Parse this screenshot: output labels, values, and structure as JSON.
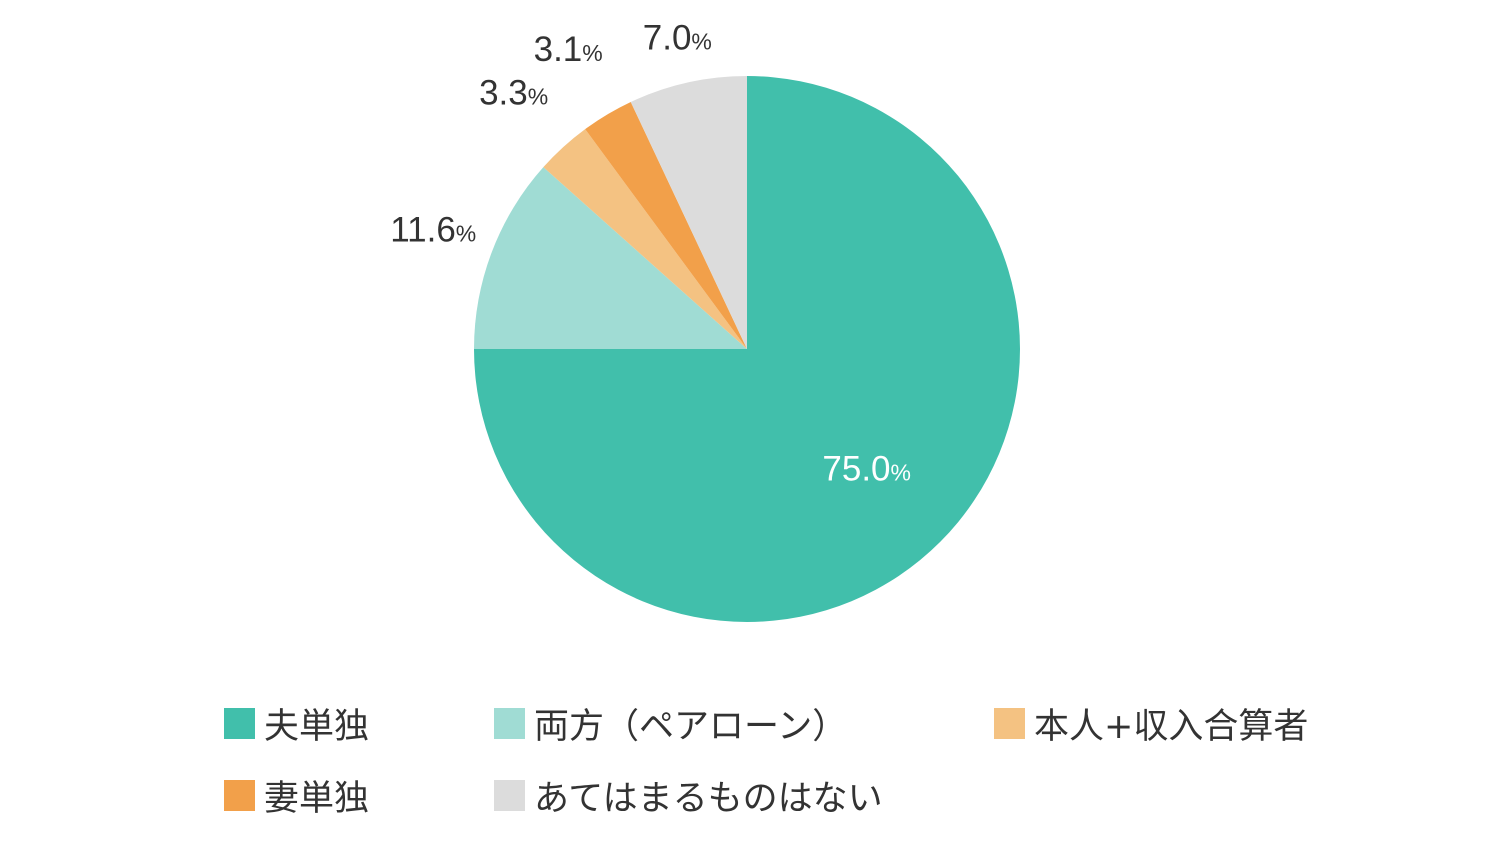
{
  "chart_data": {
    "type": "pie",
    "start_angle_deg": 0,
    "direction": "clockwise",
    "slices": [
      {
        "label": "夫単独",
        "value": 75.0,
        "value_text": "75.0",
        "color": "#41bfab",
        "label_color": "#ffffff"
      },
      {
        "label": "両方（ペアローン）",
        "value": 11.6,
        "value_text": "11.6",
        "color": "#a0dcd4",
        "label_color": "#333333"
      },
      {
        "label": "本人+収入合算者",
        "value": 3.3,
        "value_text": "3.3",
        "color": "#f4c282",
        "label_color": "#333333"
      },
      {
        "label": "妻単独",
        "value": 3.1,
        "value_text": "3.1",
        "color": "#f2a04a",
        "label_color": "#333333"
      },
      {
        "label": "あてはまるものはない",
        "value": 7.0,
        "value_text": "7.0",
        "color": "#dcdcdc",
        "label_color": "#333333"
      }
    ],
    "unit": "%",
    "legend_position": "bottom"
  }
}
